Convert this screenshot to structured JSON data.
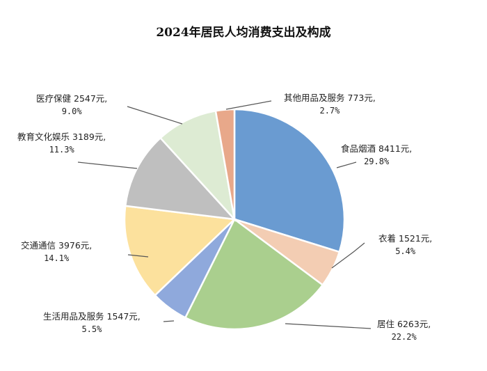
{
  "chart_data": {
    "type": "pie",
    "title": "2024年居民人均消费支出及构成",
    "unit": "元",
    "slices": [
      {
        "name": "食品烟酒",
        "value": 8411,
        "value_label": "8411元,",
        "percent": 29.8,
        "percent_label": "29.8%",
        "color": "#6A9BD1"
      },
      {
        "name": "衣着",
        "value": 1521,
        "value_label": "1521元,",
        "percent": 5.4,
        "percent_label": "5.4%",
        "color": "#F3CDB3"
      },
      {
        "name": "居住",
        "value": 6263,
        "value_label": "6263元,",
        "percent": 22.2,
        "percent_label": "22.2%",
        "color": "#AACF8E"
      },
      {
        "name": "生活用品及服务",
        "value": 1547,
        "value_label": "1547元,",
        "percent": 5.5,
        "percent_label": "5.5%",
        "color": "#8FA9DC"
      },
      {
        "name": "交通通信",
        "value": 3976,
        "value_label": "3976元,",
        "percent": 14.1,
        "percent_label": "14.1%",
        "color": "#FCE19D"
      },
      {
        "name": "教育文化娱乐",
        "value": 3189,
        "value_label": "3189元,",
        "percent": 11.3,
        "percent_label": "11.3%",
        "color": "#BFBFBF"
      },
      {
        "name": "医疗保健",
        "value": 2547,
        "value_label": "2547元,",
        "percent": 9.0,
        "percent_label": "9.0%",
        "color": "#DDEBD3"
      },
      {
        "name": "其他用品及服务",
        "value": 773,
        "value_label": "773元,",
        "percent": 2.7,
        "percent_label": "2.7%",
        "color": "#E8A88A"
      }
    ]
  }
}
